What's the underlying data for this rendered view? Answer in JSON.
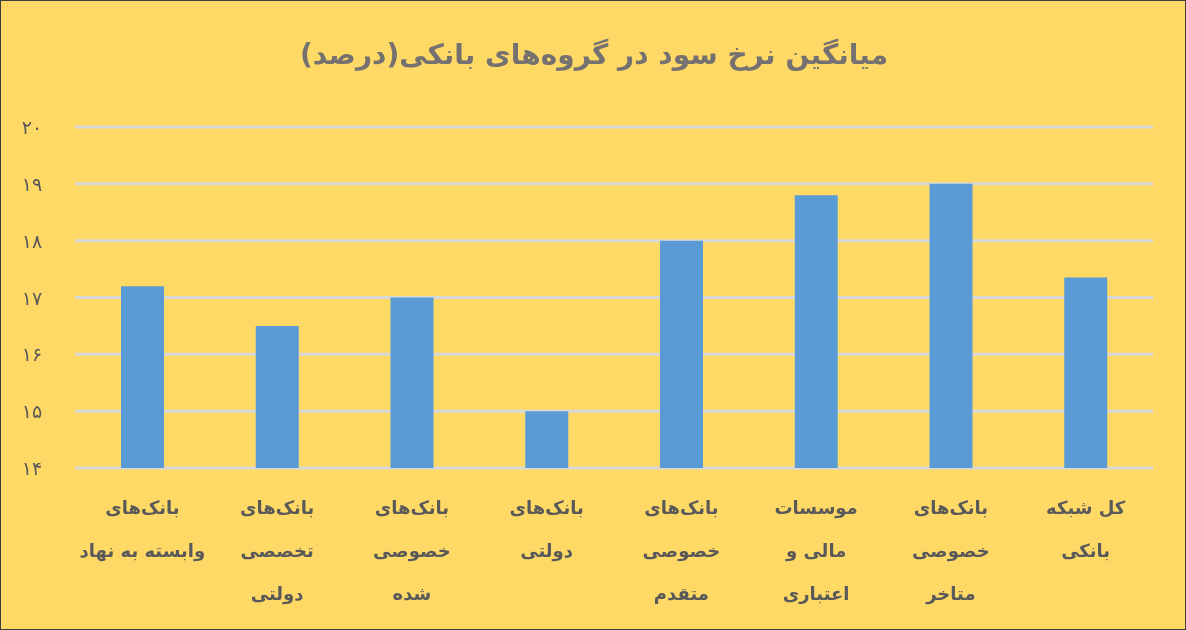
{
  "chart_data": {
    "type": "bar",
    "title": "میانگین نرخ سود در گروه‌های بانکی(درصد)",
    "categories": [
      "بانک‌های\nوابسته به نهاد",
      "بانک‌های\nتخصصی\nدولتی",
      "بانک‌های\nخصوصی\nشده",
      "بانک‌های\nدولتی",
      "بانک‌های\nخصوصی\nمتقدم",
      "موسسات\nمالی و\nاعتباری",
      "بانک‌های\nخصوصی\nمتاخر",
      "کل شبکه\nبانکی"
    ],
    "values": [
      17.2,
      16.5,
      17.0,
      15.0,
      18.0,
      18.8,
      19.0,
      17.35
    ],
    "color": "#5b9bd5",
    "ylim": [
      14,
      20
    ],
    "yticks": [
      {
        "value": 14,
        "label": "۱۴"
      },
      {
        "value": 15,
        "label": "۱۵"
      },
      {
        "value": 16,
        "label": "۱۶"
      },
      {
        "value": 17,
        "label": "۱۷"
      },
      {
        "value": 18,
        "label": "۱۸"
      },
      {
        "value": 19,
        "label": "۱۹"
      },
      {
        "value": 20,
        "label": "۲۰"
      }
    ],
    "grid": "y"
  }
}
